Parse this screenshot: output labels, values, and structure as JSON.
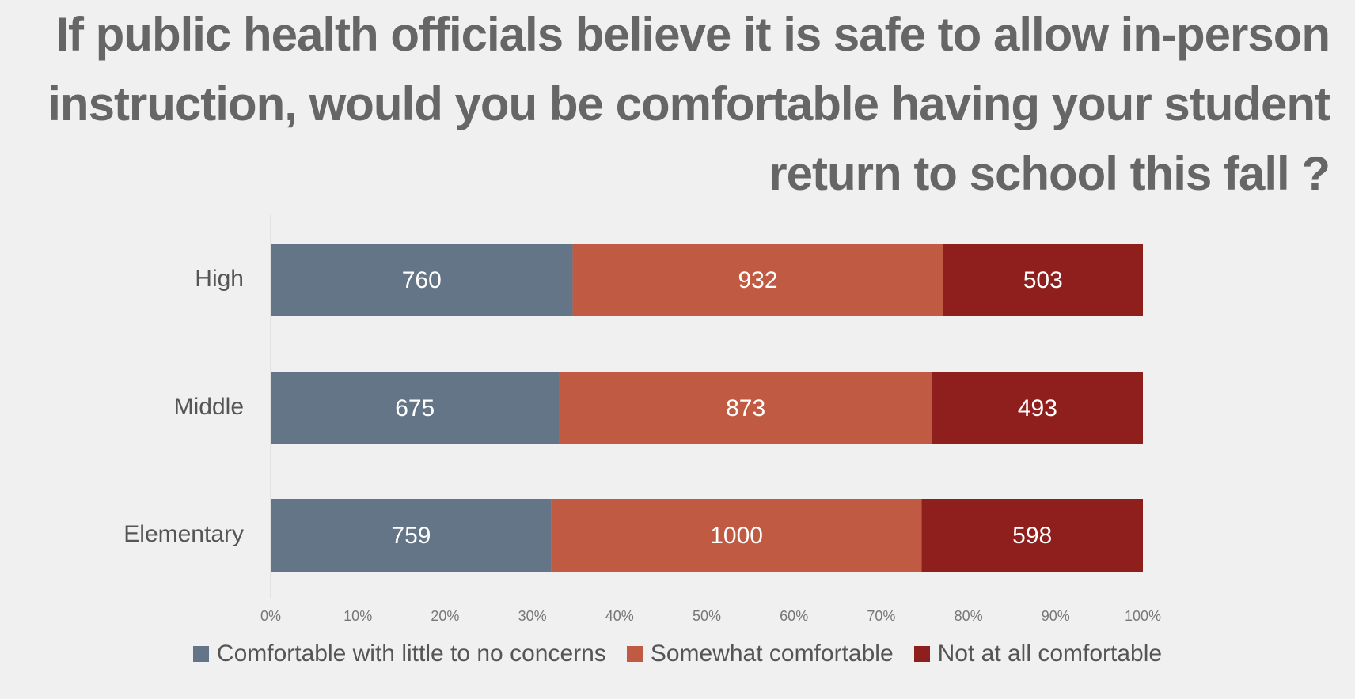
{
  "chart_data": {
    "type": "bar",
    "orientation": "horizontal",
    "stacked": "percent",
    "title": "If public health officials believe it is safe to allow in-person instruction, would you be comfortable having your student return to school this fall ?",
    "categories": [
      "High",
      "Middle",
      "Elementary"
    ],
    "series": [
      {
        "name": "Comfortable with little to no concerns",
        "values": [
          760,
          675,
          759
        ],
        "color": "#647587"
      },
      {
        "name": "Somewhat comfortable",
        "values": [
          932,
          873,
          1000
        ],
        "color": "#c05a43"
      },
      {
        "name": "Not at all comfortable",
        "values": [
          503,
          493,
          598
        ],
        "color": "#8f1f1d"
      }
    ],
    "x_ticks": [
      "0%",
      "10%",
      "20%",
      "30%",
      "40%",
      "50%",
      "60%",
      "70%",
      "80%",
      "90%",
      "100%"
    ],
    "xlim": [
      0,
      100
    ],
    "grid": false,
    "legend_position": "bottom"
  }
}
